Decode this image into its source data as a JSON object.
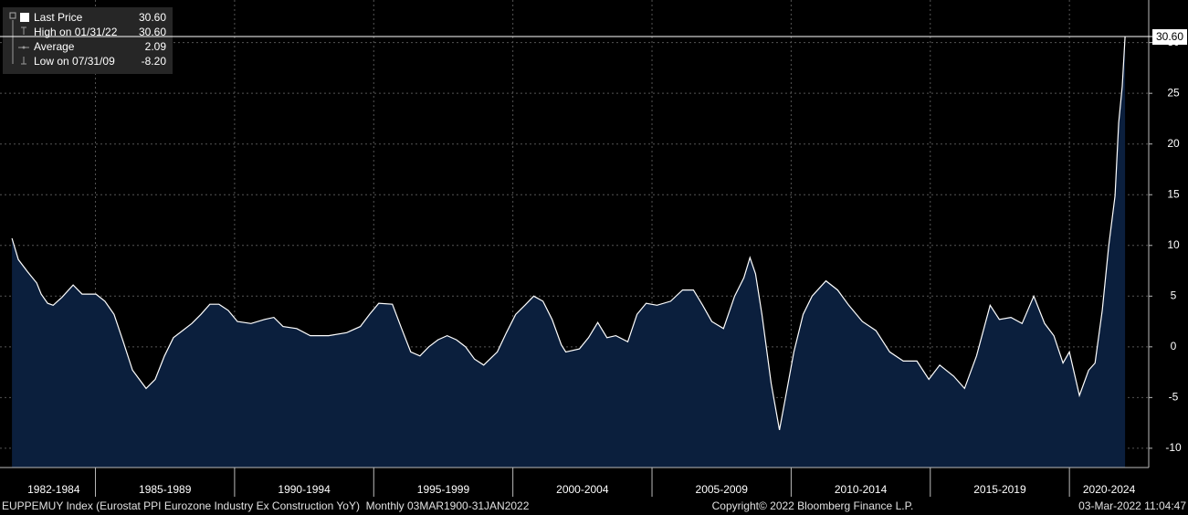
{
  "chart_data": {
    "type": "area",
    "x": [
      1982.0,
      1982.23,
      1982.56,
      1982.89,
      1983.05,
      1983.28,
      1983.48,
      1983.8,
      1984.2,
      1984.52,
      1985.02,
      1985.34,
      1985.67,
      1986.0,
      1986.33,
      1986.82,
      1987.15,
      1987.48,
      1987.8,
      1988.13,
      1988.46,
      1988.79,
      1989.11,
      1989.44,
      1989.77,
      1990.1,
      1990.59,
      1991.08,
      1991.41,
      1991.74,
      1992.23,
      1992.72,
      1993.38,
      1994.03,
      1994.52,
      1994.85,
      1995.18,
      1995.67,
      1996.0,
      1996.33,
      1996.66,
      1996.98,
      1997.31,
      1997.64,
      1997.97,
      1998.3,
      1998.62,
      1998.95,
      1999.44,
      1999.77,
      2000.1,
      2000.43,
      2000.75,
      2001.08,
      2001.41,
      2001.74,
      2001.9,
      2002.39,
      2002.72,
      2003.05,
      2003.38,
      2003.7,
      2004.13,
      2004.46,
      2004.79,
      2005.18,
      2005.67,
      2006.1,
      2006.49,
      2006.82,
      2007.15,
      2007.57,
      2007.97,
      2008.3,
      2008.52,
      2008.72,
      2008.95,
      2009.28,
      2009.58,
      2009.77,
      2010.1,
      2010.43,
      2010.75,
      2011.25,
      2011.67,
      2012.07,
      2012.56,
      2013.05,
      2013.54,
      2014.03,
      2014.52,
      2014.95,
      2015.34,
      2015.84,
      2016.23,
      2016.66,
      2017.15,
      2017.48,
      2017.9,
      2018.3,
      2018.72,
      2019.11,
      2019.44,
      2019.77,
      2020.0,
      2020.36,
      2020.69,
      2020.92,
      2021.18,
      2021.41,
      2021.64,
      2021.77,
      2021.9,
      2022.0
    ],
    "series": [
      {
        "name": "Last Price",
        "color": "#ffffff",
        "fill": "#0b1f3d",
        "values": [
          10.7,
          8.6,
          7.4,
          6.3,
          5.2,
          4.3,
          4.1,
          4.9,
          6.1,
          5.2,
          5.2,
          4.5,
          3.2,
          0.5,
          -2.3,
          -4.1,
          -3.2,
          -0.9,
          0.9,
          1.6,
          2.3,
          3.2,
          4.2,
          4.2,
          3.6,
          2.5,
          2.3,
          2.7,
          2.9,
          2.0,
          1.8,
          1.1,
          1.1,
          1.4,
          2.0,
          3.2,
          4.3,
          4.2,
          1.8,
          -0.5,
          -0.9,
          0.0,
          0.7,
          1.1,
          0.7,
          0.0,
          -1.2,
          -1.8,
          -0.5,
          1.4,
          3.2,
          4.1,
          5.0,
          4.5,
          2.7,
          0.2,
          -0.5,
          -0.2,
          0.9,
          2.4,
          0.9,
          1.1,
          0.5,
          3.2,
          4.3,
          4.1,
          4.5,
          5.6,
          5.6,
          4.1,
          2.5,
          1.8,
          5.0,
          6.8,
          8.8,
          7.2,
          3.2,
          -3.6,
          -8.2,
          -5.4,
          -0.5,
          3.2,
          5.0,
          6.5,
          5.6,
          4.1,
          2.5,
          1.6,
          -0.5,
          -1.4,
          -1.4,
          -3.2,
          -1.8,
          -2.9,
          -4.1,
          -0.9,
          4.1,
          2.7,
          2.9,
          2.3,
          5.0,
          2.3,
          1.1,
          -1.6,
          -0.5,
          -4.8,
          -2.3,
          -1.6,
          3.6,
          9.9,
          14.9,
          22.1,
          25.7,
          30.6
        ]
      }
    ],
    "xlim": [
      1981.57,
      2022.85
    ],
    "xticks": [
      {
        "value": 1982,
        "label": "1982-1984"
      },
      {
        "value": 1985,
        "label": "1985-1989"
      },
      {
        "value": 1990,
        "label": "1990-1994"
      },
      {
        "value": 1995,
        "label": "1995-1999"
      },
      {
        "value": 2000,
        "label": "2000-2004"
      },
      {
        "value": 2005,
        "label": "2005-2009"
      },
      {
        "value": 2010,
        "label": "2010-2014"
      },
      {
        "value": 2015,
        "label": "2015-2019"
      },
      {
        "value": 2020,
        "label": "2020-2024"
      }
    ],
    "ylim": [
      -11.9,
      34.2
    ],
    "yticks": [
      -10,
      -5,
      0,
      5,
      10,
      15,
      20,
      25,
      30
    ],
    "grid": true,
    "stats": [
      {
        "name": "Last Price",
        "value": 30.6,
        "value_label": "30.60"
      },
      {
        "name": "High on 01/31/22",
        "value": 30.6,
        "value_label": "30.60"
      },
      {
        "name": "Average",
        "value": 2.09,
        "value_label": "2.09"
      },
      {
        "name": "Low on 07/31/09",
        "value": -8.2,
        "value_label": "-8.20"
      }
    ],
    "footer": {
      "left": "EUPPEMUY Index (Eurostat PPI Eurozone Industry Ex Construction YoY)  Monthly 03MAR1900-31JAN2022",
      "center": "Copyright© 2022 Bloomberg Finance L.P.",
      "right": "03-Mar-2022 11:04:47"
    }
  }
}
